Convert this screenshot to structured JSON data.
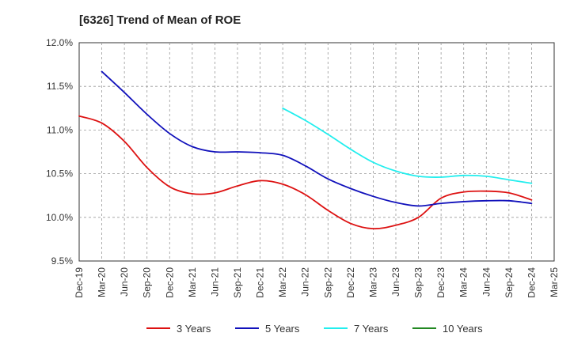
{
  "chart_data": {
    "type": "line",
    "title": "[6326]  Trend of Mean of ROE",
    "xlabel": "",
    "ylabel": "",
    "x": [
      "Dec-19",
      "Mar-20",
      "Jun-20",
      "Sep-20",
      "Dec-20",
      "Mar-21",
      "Jun-21",
      "Sep-21",
      "Dec-21",
      "Mar-22",
      "Jun-22",
      "Sep-22",
      "Dec-22",
      "Mar-23",
      "Jun-23",
      "Sep-23",
      "Dec-23",
      "Mar-24",
      "Jun-24",
      "Sep-24",
      "Dec-24",
      "Mar-25"
    ],
    "ylim": [
      9.5,
      12.0
    ],
    "yticks": [
      9.5,
      10.0,
      10.5,
      11.0,
      11.5,
      12.0
    ],
    "ytick_labels": [
      "9.5%",
      "10.0%",
      "10.5%",
      "11.0%",
      "11.5%",
      "12.0%"
    ],
    "grid": true,
    "legend_position": "bottom",
    "series": [
      {
        "name": "3 Years",
        "color": "#dd1111",
        "values": [
          11.16,
          11.08,
          10.87,
          10.57,
          10.35,
          10.27,
          10.28,
          10.36,
          10.42,
          10.38,
          10.26,
          10.08,
          9.93,
          9.87,
          9.91,
          10.0,
          10.22,
          10.29,
          10.3,
          10.28,
          10.2,
          null
        ]
      },
      {
        "name": "5 Years",
        "color": "#1111bb",
        "values": [
          null,
          11.67,
          11.43,
          11.18,
          10.96,
          10.81,
          10.75,
          10.75,
          10.74,
          10.71,
          10.59,
          10.44,
          10.33,
          10.24,
          10.17,
          10.13,
          10.16,
          10.18,
          10.19,
          10.19,
          10.16,
          null
        ]
      },
      {
        "name": "7 Years",
        "color": "#22eeee",
        "values": [
          null,
          null,
          null,
          null,
          null,
          null,
          null,
          null,
          null,
          11.25,
          11.11,
          10.95,
          10.78,
          10.63,
          10.53,
          10.47,
          10.46,
          10.48,
          10.47,
          10.43,
          10.39,
          null
        ]
      },
      {
        "name": "10 Years",
        "color": "#228822",
        "values": [
          null,
          null,
          null,
          null,
          null,
          null,
          null,
          null,
          null,
          null,
          null,
          null,
          null,
          null,
          null,
          null,
          null,
          null,
          null,
          null,
          null,
          null
        ]
      }
    ]
  }
}
